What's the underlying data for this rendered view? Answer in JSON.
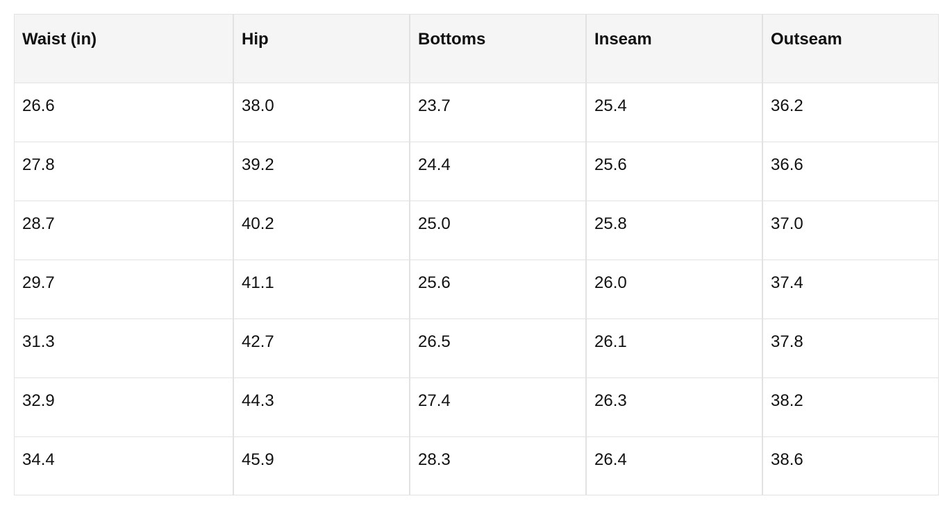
{
  "table": {
    "headers": [
      "Waist (in)",
      "Hip",
      "Bottoms",
      "Inseam",
      "Outseam"
    ],
    "rows": [
      [
        "26.6",
        "38.0",
        "23.7",
        "25.4",
        "36.2"
      ],
      [
        "27.8",
        "39.2",
        "24.4",
        "25.6",
        "36.6"
      ],
      [
        "28.7",
        "40.2",
        "25.0",
        "25.8",
        "37.0"
      ],
      [
        "29.7",
        "41.1",
        "25.6",
        "26.0",
        "37.4"
      ],
      [
        "31.3",
        "42.7",
        "26.5",
        "26.1",
        "37.8"
      ],
      [
        "32.9",
        "44.3",
        "27.4",
        "26.3",
        "38.2"
      ],
      [
        "34.4",
        "45.9",
        "28.3",
        "26.4",
        "38.6"
      ]
    ]
  }
}
